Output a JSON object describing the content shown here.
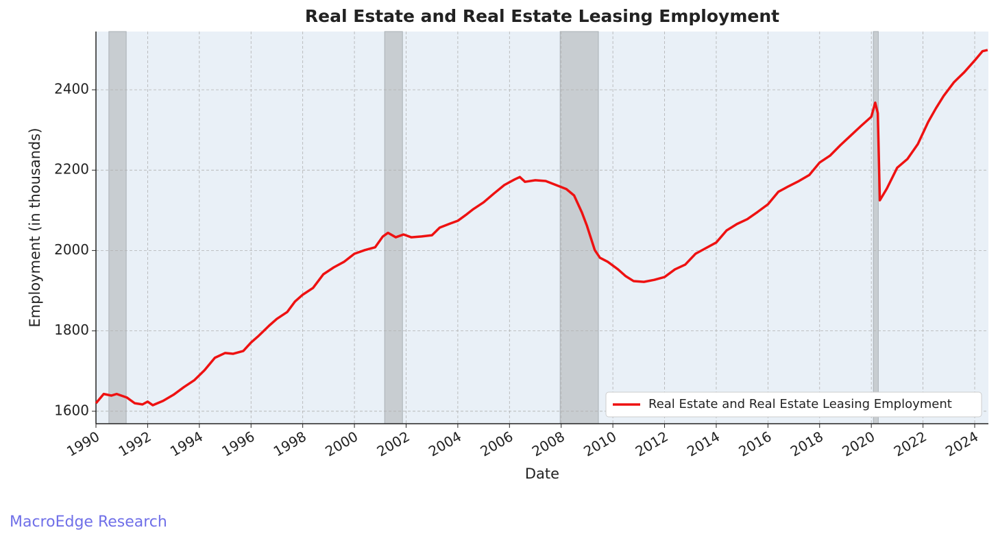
{
  "chart_data": {
    "type": "line",
    "title": "Real Estate and Real Estate Leasing Employment",
    "xlabel": "Date",
    "ylabel": "Employment (in thousands)",
    "watermark": "MacroEdge Research",
    "x": [
      1990.0,
      1990.3,
      1990.6,
      1990.8,
      1991.2,
      1991.5,
      1991.8,
      1992.0,
      1992.2,
      1992.6,
      1993.0,
      1993.4,
      1993.8,
      1994.2,
      1994.6,
      1995.0,
      1995.3,
      1995.7,
      1996.0,
      1996.3,
      1996.7,
      1997.0,
      1997.4,
      1997.7,
      1998.0,
      1998.4,
      1998.8,
      1999.2,
      1999.6,
      2000.0,
      2000.4,
      2000.8,
      2001.1,
      2001.3,
      2001.6,
      2001.9,
      2002.2,
      2002.6,
      2003.0,
      2003.3,
      2003.7,
      2004.0,
      2004.3,
      2004.6,
      2005.0,
      2005.4,
      2005.8,
      2006.2,
      2006.4,
      2006.6,
      2007.0,
      2007.4,
      2007.8,
      2008.2,
      2008.5,
      2008.8,
      2009.0,
      2009.3,
      2009.5,
      2009.8,
      2010.2,
      2010.5,
      2010.8,
      2011.2,
      2011.6,
      2012.0,
      2012.4,
      2012.8,
      2013.2,
      2013.6,
      2014.0,
      2014.4,
      2014.8,
      2015.2,
      2015.6,
      2016.0,
      2016.4,
      2016.8,
      2017.2,
      2017.6,
      2018.0,
      2018.4,
      2018.8,
      2019.2,
      2019.6,
      2020.0,
      2020.15,
      2020.25,
      2020.33,
      2020.6,
      2021.0,
      2021.4,
      2021.8,
      2022.2,
      2022.5,
      2022.8,
      2023.2,
      2023.6,
      2024.0,
      2024.3,
      2024.5
    ],
    "series": [
      {
        "name": "Real Estate and Real Estate Leasing Employment",
        "color": "#ee1111",
        "values": [
          1620,
          1643,
          1639,
          1643,
          1634,
          1620,
          1617,
          1624,
          1615,
          1626,
          1641,
          1660,
          1677,
          1702,
          1733,
          1745,
          1743,
          1750,
          1771,
          1788,
          1813,
          1830,
          1847,
          1873,
          1890,
          1907,
          1941,
          1958,
          1972,
          1992,
          2001,
          2008,
          2035,
          2044,
          2033,
          2040,
          2033,
          2035,
          2038,
          2057,
          2067,
          2074,
          2088,
          2103,
          2120,
          2142,
          2163,
          2177,
          2183,
          2171,
          2175,
          2173,
          2163,
          2153,
          2137,
          2095,
          2061,
          2001,
          1982,
          1972,
          1953,
          1936,
          1924,
          1922,
          1927,
          1934,
          1953,
          1965,
          1992,
          2006,
          2020,
          2050,
          2066,
          2078,
          2096,
          2115,
          2146,
          2160,
          2173,
          2188,
          2219,
          2236,
          2262,
          2286,
          2310,
          2333,
          2368,
          2342,
          2125,
          2154,
          2206,
          2228,
          2265,
          2320,
          2354,
          2385,
          2419,
          2444,
          2473,
          2496,
          2499
        ]
      }
    ],
    "shaded_ranges": [
      [
        1990.5,
        1991.17
      ],
      [
        2001.17,
        2001.86
      ],
      [
        2007.96,
        2009.44
      ],
      [
        2020.08,
        2020.27
      ]
    ],
    "xlim": [
      1990,
      2024.53
    ],
    "ylim": [
      1569,
      2545
    ],
    "xticks": [
      1990,
      1992,
      1994,
      1996,
      1998,
      2000,
      2002,
      2004,
      2006,
      2008,
      2010,
      2012,
      2014,
      2016,
      2018,
      2020,
      2022,
      2024
    ],
    "yticks": [
      1600,
      1800,
      2000,
      2200,
      2400
    ],
    "grid": true,
    "legend": "lower right"
  }
}
